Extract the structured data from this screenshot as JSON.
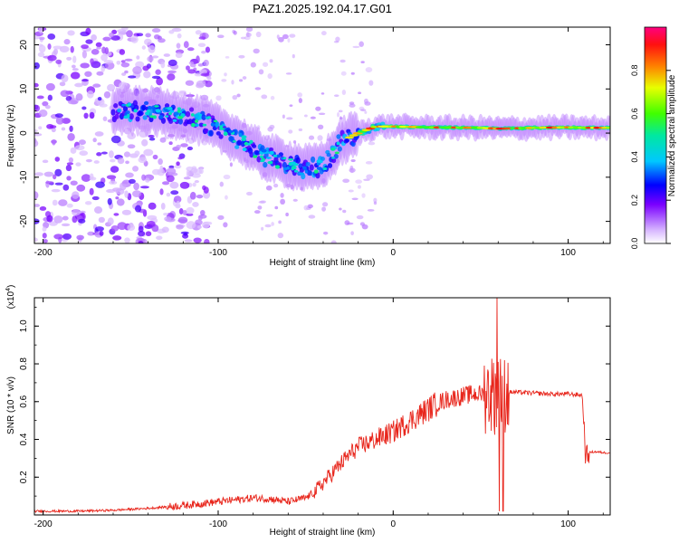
{
  "title": "PAZ1.2025.192.04.17.G01",
  "chart_data": [
    {
      "type": "heatmap",
      "xlabel": "Height of straight line (km)",
      "ylabel": "Frequency (Hz)",
      "xlim": [
        -205,
        124
      ],
      "ylim": [
        -25,
        24
      ],
      "xticks": [
        -200,
        -100,
        0,
        100
      ],
      "xtick_labels": [
        "-200",
        "-100",
        "0",
        "100"
      ],
      "yticks": [
        -20,
        -10,
        0,
        10,
        20
      ],
      "ytick_labels": [
        "-20",
        "-10",
        "0",
        "10",
        "20"
      ],
      "ridge_frequency": {
        "x": [
          -160,
          -140,
          -120,
          -105,
          -90,
          -75,
          -60,
          -50,
          -45,
          -40,
          -35,
          -30,
          -20,
          -10,
          0,
          20,
          50,
          60,
          80,
          100,
          110,
          124
        ],
        "y": [
          5,
          5,
          4,
          2,
          -1,
          -5,
          -7,
          -8,
          -8,
          -7,
          -5,
          -2,
          0,
          1.5,
          1.5,
          1.3,
          1.2,
          1,
          1.2,
          1.3,
          1.2,
          1.2
        ]
      },
      "noise_dominant_below_km": -100,
      "colorbar": {
        "label": "Normalized spectral amplitude",
        "range": [
          0,
          1
        ],
        "ticks": [
          0.0,
          0.2,
          0.4,
          0.6,
          0.8
        ],
        "tick_labels": [
          "0.0",
          "0.2",
          "0.4",
          "0.6",
          "0.8"
        ]
      }
    },
    {
      "type": "line",
      "xlabel": "Height of straight line (km)",
      "ylabel": "SNR (10 * v/v)",
      "ylabel_multiplier": "(x10",
      "ylabel_multiplier_exp": "4",
      "ylabel_multiplier_close": ")",
      "xlim": [
        -205,
        124
      ],
      "ylim": [
        0,
        1.15
      ],
      "xticks": [
        -200,
        -100,
        0,
        100
      ],
      "xtick_labels": [
        "-200",
        "-100",
        "0",
        "100"
      ],
      "yticks": [
        0.2,
        0.4,
        0.6,
        0.8,
        1.0
      ],
      "ytick_labels": [
        "0.2",
        "0.4",
        "0.6",
        "0.8",
        "1.0"
      ],
      "series": [
        {
          "color": "#e8261c",
          "x": [
            -205,
            -180,
            -160,
            -140,
            -120,
            -110,
            -100,
            -90,
            -80,
            -70,
            -60,
            -50,
            -45,
            -40,
            -35,
            -30,
            -25,
            -20,
            -15,
            -10,
            -5,
            0,
            5,
            10,
            15,
            20,
            25,
            30,
            35,
            40,
            45,
            50,
            55,
            58,
            60,
            62,
            64,
            66,
            70,
            80,
            90,
            100,
            108,
            110,
            112,
            115,
            120,
            124
          ],
          "y": [
            0.02,
            0.02,
            0.025,
            0.035,
            0.05,
            0.06,
            0.07,
            0.08,
            0.09,
            0.085,
            0.07,
            0.09,
            0.12,
            0.17,
            0.22,
            0.27,
            0.32,
            0.36,
            0.38,
            0.4,
            0.42,
            0.44,
            0.47,
            0.5,
            0.53,
            0.56,
            0.59,
            0.61,
            0.62,
            0.63,
            0.64,
            0.64,
            0.65,
            0.64,
            0.62,
            0.64,
            0.65,
            0.65,
            0.65,
            0.645,
            0.64,
            0.64,
            0.635,
            0.3,
            0.33,
            0.335,
            0.33,
            0.33
          ]
        }
      ]
    }
  ]
}
